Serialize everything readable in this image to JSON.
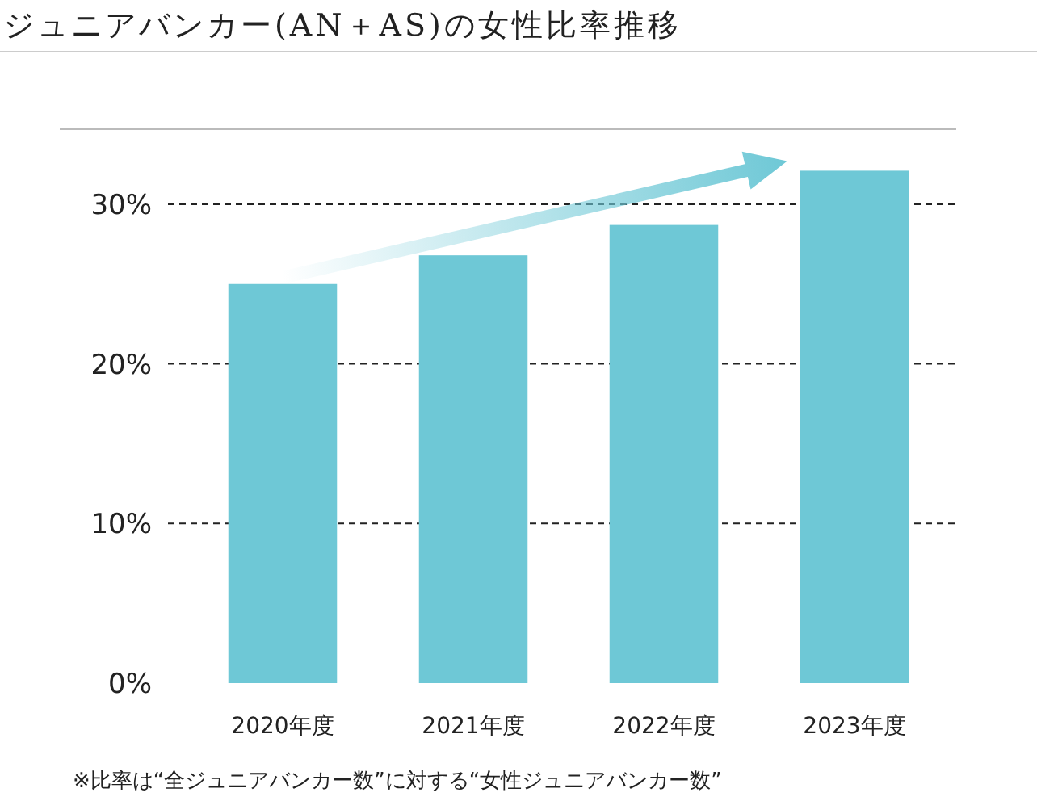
{
  "chart_data": {
    "type": "bar",
    "title": "ジュニアバンカー(AN＋AS)の女性比率推移",
    "categories": [
      "2020年度",
      "2021年度",
      "2022年度",
      "2023年度"
    ],
    "values": [
      25,
      26.8,
      28.7,
      32.1
    ],
    "color": "#6ec8d6",
    "ylim": [
      0,
      34.7
    ],
    "yticks": [
      {
        "value": 0,
        "label": "0%"
      },
      {
        "value": 10,
        "label": "10%"
      },
      {
        "value": 20,
        "label": "20%"
      },
      {
        "value": 30,
        "label": "30%"
      }
    ],
    "grid": "y",
    "line_style": "dashed",
    "annotations": [
      "※比率は“全ジュニアバンカー数”に対する“女性ジュニアバンカー数”"
    ]
  }
}
